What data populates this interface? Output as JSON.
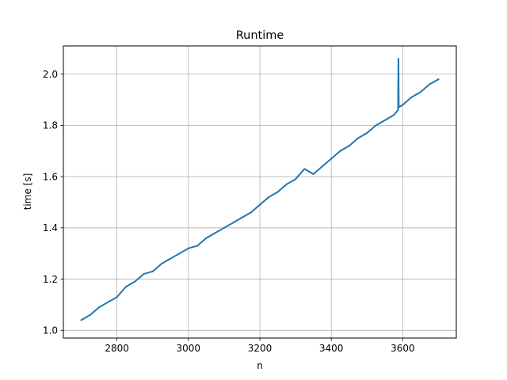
{
  "chart_data": {
    "type": "line",
    "title": "Runtime",
    "xlabel": "n",
    "ylabel": "time [s]",
    "xlim": [
      2650,
      3750
    ],
    "ylim": [
      0.97,
      2.11
    ],
    "xticks": [
      2800,
      3000,
      3200,
      3400,
      3600
    ],
    "xtick_labels": [
      "2800",
      "3000",
      "3200",
      "3400",
      "3600"
    ],
    "yticks": [
      1.0,
      1.2,
      1.4,
      1.6,
      1.8,
      2.0
    ],
    "ytick_labels": [
      "1.0",
      "1.2",
      "1.4",
      "1.6",
      "1.8",
      "2.0"
    ],
    "grid": true,
    "series": [
      {
        "color": "#1f77b4",
        "x": [
          2700,
          2725,
          2750,
          2775,
          2800,
          2825,
          2850,
          2875,
          2900,
          2925,
          2950,
          2975,
          3000,
          3025,
          3050,
          3075,
          3100,
          3125,
          3150,
          3175,
          3200,
          3225,
          3250,
          3275,
          3300,
          3325,
          3350,
          3375,
          3400,
          3425,
          3450,
          3475,
          3500,
          3525,
          3550,
          3575,
          3587,
          3588,
          3589,
          3600,
          3625,
          3650,
          3675,
          3700
        ],
        "y": [
          1.04,
          1.06,
          1.09,
          1.11,
          1.13,
          1.17,
          1.19,
          1.22,
          1.23,
          1.26,
          1.28,
          1.3,
          1.32,
          1.33,
          1.36,
          1.38,
          1.4,
          1.42,
          1.44,
          1.46,
          1.49,
          1.52,
          1.54,
          1.57,
          1.59,
          1.63,
          1.61,
          1.64,
          1.67,
          1.7,
          1.72,
          1.75,
          1.77,
          1.8,
          1.82,
          1.84,
          1.86,
          2.06,
          1.87,
          1.88,
          1.91,
          1.93,
          1.96,
          1.98
        ]
      }
    ]
  }
}
